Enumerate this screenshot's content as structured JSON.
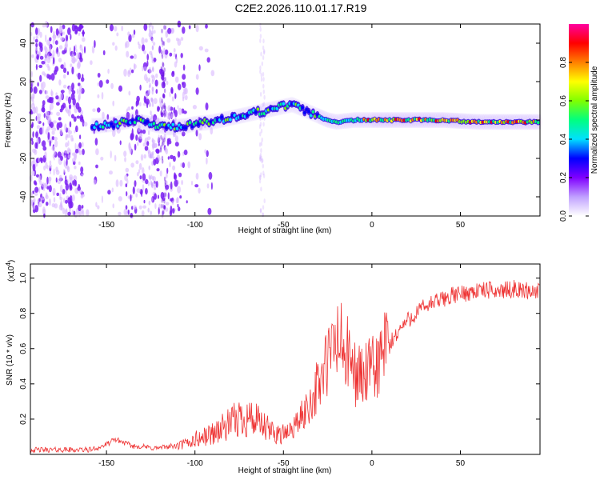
{
  "title": "C2E2.2026.110.01.17.R19",
  "chart_data": [
    {
      "type": "heatmap",
      "name": "spectrogram",
      "xlabel": "Height of straight line (km)",
      "ylabel": "Frequency (Hz)",
      "xlim": [
        -193,
        95
      ],
      "ylim": [
        -50,
        50
      ],
      "xticks": [
        -150,
        -100,
        -50,
        0,
        50
      ],
      "yticks": [
        -40,
        -20,
        0,
        20,
        40
      ],
      "ridge": {
        "description": "dominant frequency ridge vs height",
        "x": [
          -155,
          -145,
          -135,
          -125,
          -115,
          -105,
          -100,
          -90,
          -80,
          -70,
          -60,
          -50,
          -45,
          -40,
          -35,
          -30,
          -25,
          -20,
          -10,
          0,
          20,
          40,
          60,
          80,
          95
        ],
        "y": [
          -3,
          -2,
          0,
          -2,
          -4,
          -3,
          -2,
          -1,
          1,
          3,
          5,
          7,
          8,
          6,
          4,
          2,
          0,
          -1,
          0,
          0,
          0,
          0,
          -1,
          -1,
          -1
        ]
      },
      "colorbar": {
        "label": "Normalized spectral amplitude",
        "range": [
          0,
          1
        ],
        "ticks": [
          0.0,
          0.2,
          0.4,
          0.6,
          0.8
        ],
        "tick_labels": [
          "0.0",
          "0.2",
          "0.4",
          "0.6",
          "0.8"
        ],
        "colors": [
          "#ffffff",
          "#c0a0ff",
          "#8000ff",
          "#0000ff",
          "#00e0ff",
          "#00ff80",
          "#80ff00",
          "#ffff00",
          "#ff8000",
          "#ff0000",
          "#ff00a0"
        ]
      }
    },
    {
      "type": "line",
      "name": "snr",
      "xlabel": "Height of straight line (km)",
      "ylabel": "SNR (10 * v/v)",
      "y_multiplier": "(x10",
      "y_multiplier_exp": "4",
      "y_multiplier_close": ")",
      "xlim": [
        -193,
        95
      ],
      "ylim": [
        0.0,
        1.08
      ],
      "xticks": [
        -150,
        -100,
        -50,
        0,
        50
      ],
      "yticks": [
        0.2,
        0.4,
        0.6,
        0.8,
        1.0
      ],
      "ytick_labels": [
        "0.2",
        "0.4",
        "0.6",
        "0.8",
        "1.0"
      ],
      "color": "#ee3333",
      "series": [
        {
          "name": "SNR",
          "x": [
            -193,
            -180,
            -170,
            -160,
            -155,
            -150,
            -145,
            -140,
            -135,
            -130,
            -125,
            -120,
            -115,
            -110,
            -105,
            -100,
            -95,
            -90,
            -85,
            -80,
            -75,
            -70,
            -65,
            -60,
            -55,
            -50,
            -45,
            -40,
            -35,
            -30,
            -25,
            -20,
            -18,
            -15,
            -10,
            -5,
            0,
            5,
            10,
            15,
            20,
            25,
            30,
            35,
            40,
            45,
            50,
            55,
            60,
            65,
            70,
            75,
            80,
            85,
            90,
            95
          ],
          "y": [
            0.02,
            0.02,
            0.02,
            0.02,
            0.03,
            0.05,
            0.08,
            0.06,
            0.04,
            0.04,
            0.03,
            0.03,
            0.04,
            0.04,
            0.05,
            0.07,
            0.08,
            0.1,
            0.12,
            0.14,
            0.17,
            0.18,
            0.15,
            0.12,
            0.1,
            0.1,
            0.14,
            0.2,
            0.28,
            0.38,
            0.5,
            0.62,
            0.6,
            0.55,
            0.45,
            0.42,
            0.45,
            0.52,
            0.62,
            0.7,
            0.76,
            0.8,
            0.84,
            0.86,
            0.88,
            0.9,
            0.91,
            0.92,
            0.93,
            0.93,
            0.93,
            0.93,
            0.94,
            0.93,
            0.93,
            0.92
          ]
        }
      ]
    }
  ]
}
